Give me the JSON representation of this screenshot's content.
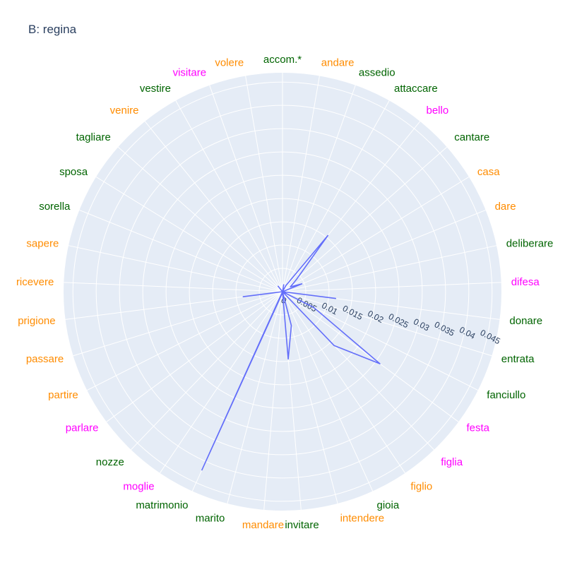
{
  "chart_data": {
    "type": "radar",
    "title": "B: regina",
    "radial_range": [
      0,
      0.047
    ],
    "radial_ticks": [
      0,
      0.005,
      0.01,
      0.015,
      0.02,
      0.025,
      0.03,
      0.035,
      0.04,
      0.045
    ],
    "radial_tick_labels": [
      "0",
      "0.005",
      "0.01",
      "0.015",
      "0.02",
      "0.025",
      "0.03",
      "0.035",
      "0.04",
      "0.045"
    ],
    "categories": [
      {
        "label": "accom.*",
        "group": "green"
      },
      {
        "label": "andare",
        "group": "orange"
      },
      {
        "label": "assedio",
        "group": "green"
      },
      {
        "label": "attaccare",
        "group": "green"
      },
      {
        "label": "bello",
        "group": "magenta"
      },
      {
        "label": "cantare",
        "group": "green"
      },
      {
        "label": "casa",
        "group": "orange"
      },
      {
        "label": "dare",
        "group": "orange"
      },
      {
        "label": "deliberare",
        "group": "green"
      },
      {
        "label": "difesa",
        "group": "magenta"
      },
      {
        "label": "donare",
        "group": "green"
      },
      {
        "label": "entrata",
        "group": "green"
      },
      {
        "label": "fanciullo",
        "group": "green"
      },
      {
        "label": "festa",
        "group": "magenta"
      },
      {
        "label": "figlia",
        "group": "magenta"
      },
      {
        "label": "figlio",
        "group": "orange"
      },
      {
        "label": "gioia",
        "group": "green"
      },
      {
        "label": "intendere",
        "group": "orange"
      },
      {
        "label": "invitare",
        "group": "green"
      },
      {
        "label": "mandare",
        "group": "orange"
      },
      {
        "label": "marito",
        "group": "green"
      },
      {
        "label": "matrimonio",
        "group": "green"
      },
      {
        "label": "moglie",
        "group": "magenta"
      },
      {
        "label": "nozze",
        "group": "green"
      },
      {
        "label": "parlare",
        "group": "magenta"
      },
      {
        "label": "partire",
        "group": "orange"
      },
      {
        "label": "passare",
        "group": "orange"
      },
      {
        "label": "prigione",
        "group": "orange"
      },
      {
        "label": "ricevere",
        "group": "orange"
      },
      {
        "label": "sapere",
        "group": "orange"
      },
      {
        "label": "sorella",
        "group": "green"
      },
      {
        "label": "sposa",
        "group": "green"
      },
      {
        "label": "tagliare",
        "group": "green"
      },
      {
        "label": "venire",
        "group": "orange"
      },
      {
        "label": "vestire",
        "group": "green"
      },
      {
        "label": "visitare",
        "group": "magenta"
      },
      {
        "label": "volere",
        "group": "orange"
      }
    ],
    "series": [
      {
        "values": [
          0.0,
          0.0015,
          0.0,
          0.0015,
          0.0155,
          0.004,
          0.002,
          0.0045,
          0.0,
          0.0,
          0.0115,
          0.0,
          0.0075,
          0.026,
          0.016,
          0.0,
          0.0,
          0.0075,
          0.0145,
          0.0,
          0.0005,
          0.042,
          0.0,
          0.0,
          0.0,
          0.0,
          0.0,
          0.0085,
          0.0,
          0.0,
          0.0,
          0.0,
          0.0,
          0.0015,
          0.0,
          0.0,
          0.0
        ]
      }
    ]
  },
  "colors": {
    "green": "#006400",
    "orange": "#ff8c00",
    "magenta": "#ff00ff",
    "line": "#636efa",
    "plot_bg": "#e5ecf6",
    "grid": "#ffffff",
    "title": "#2a3f5f"
  }
}
